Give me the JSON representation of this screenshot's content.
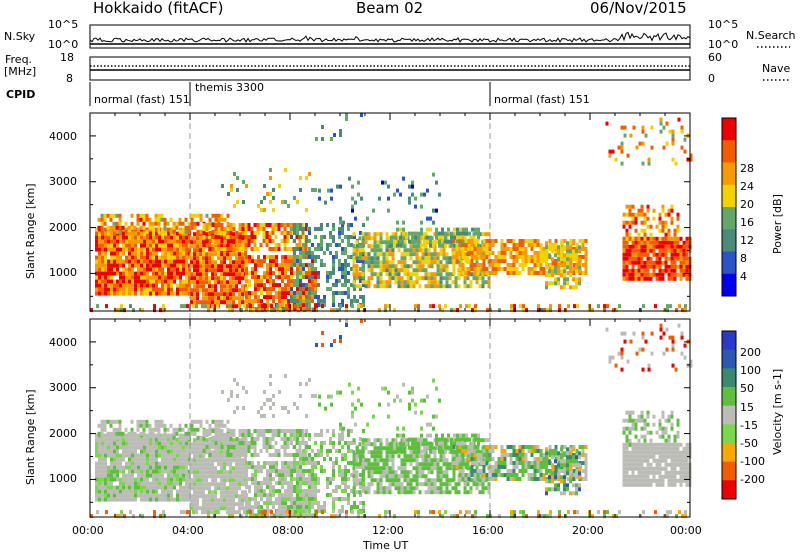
{
  "header": {
    "station": "Hokkaido (fitACF)",
    "beam": "Beam 02",
    "date": "06/Nov/2015"
  },
  "noise_panel": {
    "left_label": "N.Sky",
    "left_ticks": [
      "10^5",
      "10^0"
    ],
    "right_ticks": [
      "10^5",
      "10^0"
    ],
    "right_label": "N.Search"
  },
  "freq_panel": {
    "label_line1": "Freq.",
    "label_line2": "[MHz]",
    "left_ticks": [
      "18",
      "8"
    ],
    "right_ticks": [
      "60",
      "0"
    ],
    "right_label": "Nave"
  },
  "cpid_panel": {
    "label": "CPID",
    "segments": [
      {
        "start_hour": 0,
        "end_hour": 4,
        "label": "normal (fast) 151"
      },
      {
        "start_hour": 4,
        "end_hour": 16,
        "label": "themis 3300"
      },
      {
        "start_hour": 16,
        "end_hour": 24,
        "label": "normal (fast) 151"
      }
    ]
  },
  "colors": {
    "power_scale": [
      "#0000ee",
      "#2a55c8",
      "#4a8a78",
      "#63a86a",
      "#f2d200",
      "#f79a00",
      "#f35c00",
      "#ee0000"
    ],
    "velocity_scale": [
      "#ee0000",
      "#f35c00",
      "#f8a800",
      "#7ad64a",
      "#bcbcb6",
      "#5ebf3e",
      "#3a8a72",
      "#2d58b0",
      "#2a3ac8"
    ]
  },
  "chart_data": [
    {
      "type": "heatmap",
      "name_hint": "power",
      "xlabel": "",
      "ylabel": "Slant Range [km]",
      "xlim": [
        0,
        24
      ],
      "ylim": [
        180,
        4500
      ],
      "yticks": [
        "1000",
        "2000",
        "3000",
        "4000"
      ],
      "colorbar_label": "Power [dB]",
      "colorbar_ticks": [
        "4",
        "8",
        "12",
        "16",
        "20",
        "24",
        "28"
      ],
      "colorbar_range": [
        0,
        30
      ]
    },
    {
      "type": "heatmap",
      "name_hint": "velocity",
      "xlabel": "Time UT",
      "ylabel": "Slant Range [km]",
      "xlim": [
        0,
        24
      ],
      "ylim": [
        180,
        4500
      ],
      "xticks": [
        "00:00",
        "04:00",
        "08:00",
        "12:00",
        "16:00",
        "20:00",
        "00:00"
      ],
      "yticks": [
        "1000",
        "2000",
        "3000",
        "4000"
      ],
      "colorbar_label": "Velocity [m s-1]",
      "colorbar_ticks": [
        "200",
        "100",
        "50",
        "15",
        "-15",
        "-50",
        "-100",
        "-200"
      ]
    }
  ]
}
